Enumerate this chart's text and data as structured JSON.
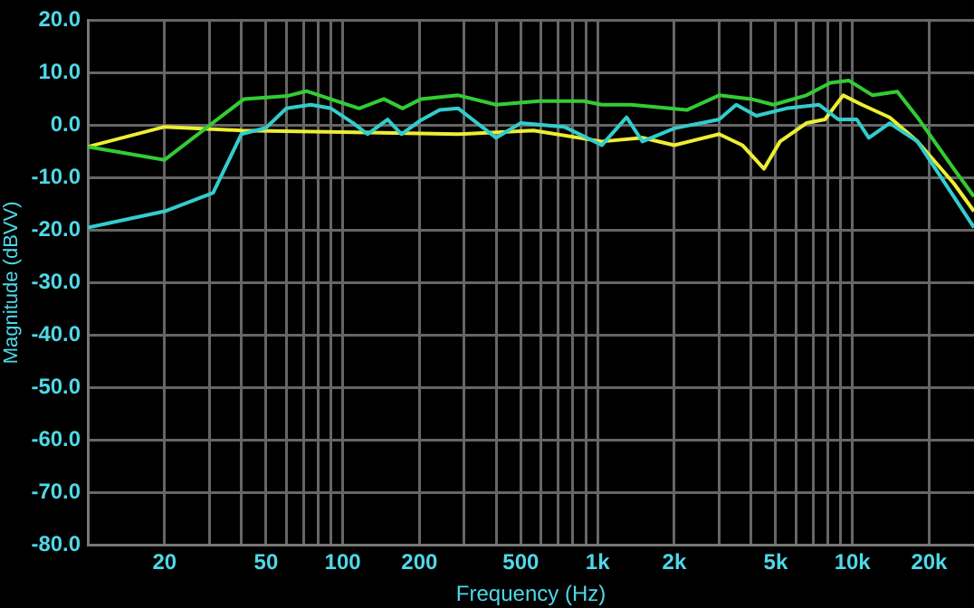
{
  "chart_data": {
    "type": "line",
    "xlabel": "Frequency (Hz)",
    "ylabel": "Magnitude (dBVV)",
    "log": "x",
    "grid": true,
    "legend": false,
    "marker": "none",
    "line_style": "solid",
    "xlim": [
      10,
      30000
    ],
    "ylim": [
      -80,
      20
    ],
    "yticks": [
      {
        "value": -80,
        "label": "-80.0"
      },
      {
        "value": -70,
        "label": "-70.0"
      },
      {
        "value": -60,
        "label": "-60.0"
      },
      {
        "value": -50,
        "label": "-50.0"
      },
      {
        "value": -40,
        "label": "-40.0"
      },
      {
        "value": -30,
        "label": "-30.0"
      },
      {
        "value": -20,
        "label": "-20.0"
      },
      {
        "value": -10,
        "label": "-10.0"
      },
      {
        "value": 0,
        "label": "0.0"
      },
      {
        "value": 10,
        "label": "10.0"
      },
      {
        "value": 20,
        "label": "20.0"
      }
    ],
    "xticks": [
      20,
      {
        "value": 30,
        "label": null
      },
      {
        "value": 40,
        "label": null
      },
      50,
      {
        "value": 60,
        "label": null
      },
      {
        "value": 70,
        "label": null
      },
      {
        "value": 80,
        "label": null
      },
      {
        "value": 90,
        "label": null
      },
      100,
      200,
      {
        "value": 300,
        "label": null
      },
      {
        "value": 400,
        "label": null
      },
      500,
      {
        "value": 600,
        "label": null
      },
      {
        "value": 700,
        "label": null
      },
      {
        "value": 800,
        "label": null
      },
      {
        "value": 900,
        "label": null
      },
      {
        "value": 1000,
        "label": "1k"
      },
      {
        "value": 2000,
        "label": "2k"
      },
      {
        "value": 3000,
        "label": null
      },
      {
        "value": 4000,
        "label": null
      },
      {
        "value": 5000,
        "label": "5k"
      },
      {
        "value": 6000,
        "label": null
      },
      {
        "value": 7000,
        "label": null
      },
      {
        "value": 8000,
        "label": null
      },
      {
        "value": 9000,
        "label": null
      },
      {
        "value": 10000,
        "label": "10k"
      },
      {
        "value": 20000,
        "label": "20k"
      }
    ],
    "series": [
      {
        "color": "#33cc33",
        "x": [
          10,
          20,
          41,
          61,
          72,
          103,
          116,
          145,
          172,
          203,
          284,
          400,
          588,
          880,
          1040,
          1350,
          2240,
          3000,
          4000,
          4900,
          6600,
          8200,
          9700,
          12000,
          15000,
          18000,
          25000,
          30000
        ],
        "values": [
          -4.1,
          -6.6,
          5,
          5.6,
          6.5,
          4,
          3.2,
          5,
          3.2,
          5,
          5.7,
          3.9,
          4.6,
          4.6,
          3.9,
          3.9,
          2.9,
          5.7,
          5,
          3.9,
          5.7,
          8.1,
          8.5,
          5.7,
          6.4,
          1.5,
          -8.3,
          -13.6
        ]
      },
      {
        "color": "#33cccc",
        "x": [
          10,
          20,
          31,
          40,
          50,
          60,
          75,
          90,
          110,
          125,
          150,
          170,
          200,
          240,
          284,
          400,
          500,
          740,
          1040,
          1300,
          1500,
          2000,
          3000,
          3500,
          4200,
          5500,
          7400,
          8800,
          10400,
          11600,
          14000,
          18000,
          25000,
          30000
        ],
        "values": [
          -19.5,
          -16.4,
          -12.9,
          -1.7,
          -0.5,
          3.2,
          3.9,
          3.2,
          0.4,
          -1.7,
          1.1,
          -1.7,
          0.8,
          2.9,
          3.2,
          -2.4,
          0.4,
          -0.3,
          -3.8,
          1.5,
          -3.1,
          -0.6,
          1.1,
          3.9,
          1.8,
          3.2,
          3.9,
          1.1,
          1.1,
          -2.4,
          0.4,
          -3.1,
          -13.6,
          -19.5
        ]
      },
      {
        "color": "#eeee33",
        "x": [
          10,
          20,
          40,
          100,
          284,
          560,
          1040,
          1500,
          2000,
          3000,
          3700,
          4500,
          5200,
          6600,
          7800,
          9200,
          10900,
          14000,
          18000,
          25000,
          30000
        ],
        "values": [
          -4.1,
          -0.3,
          -1,
          -1.3,
          -1.7,
          -1,
          -3.1,
          -2.4,
          -3.8,
          -1.7,
          -3.8,
          -8.3,
          -3.1,
          0.4,
          1.1,
          5.7,
          3.9,
          1.5,
          -3.1,
          -11.1,
          -16.4
        ]
      }
    ]
  }
}
